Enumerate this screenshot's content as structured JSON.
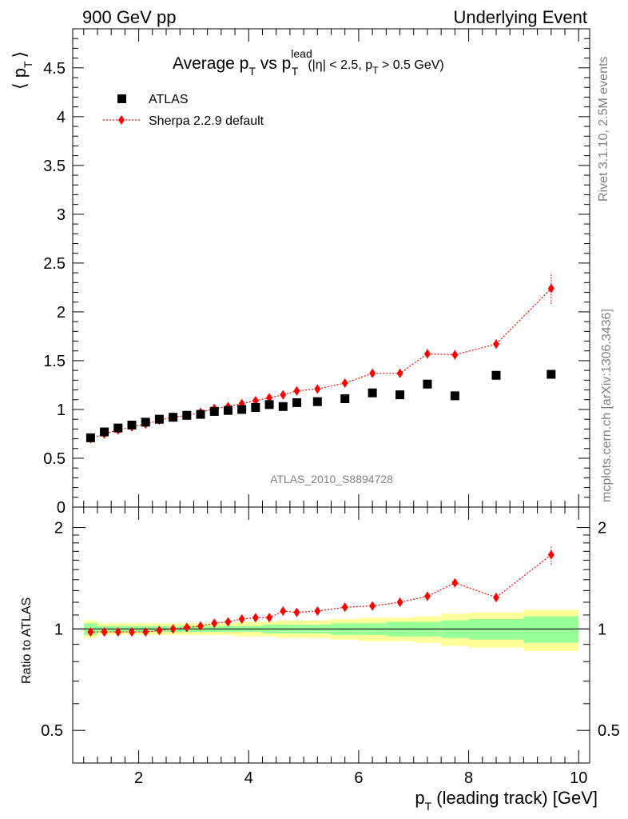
{
  "header": {
    "left": "900 GeV pp",
    "right": "Underlying Event"
  },
  "title": {
    "main": "Average p",
    "sub_T": "T",
    "vs": " vs p",
    "sup_lead": "lead",
    "sub_T2": "T",
    "cuts_a": "(|η| < 2.5, p",
    "cuts_sub": "T",
    "cuts_b": " > 0.5 GeV)"
  },
  "side_labels": {
    "rivet": "Rivet 3.1.10,  2.5M events",
    "mcplots": "mcplots.cern.ch [arXiv:1306.3436]"
  },
  "analysis_id": "ATLAS_2010_S8894728",
  "axis_labels": {
    "main_y_left": "⟨ p",
    "main_y_sub": "T",
    "main_y_right": "⟩",
    "ratio_y": "Ratio to ATLAS",
    "x_main": "p",
    "x_sub": "T",
    "x_rest": " (leading track) [GeV]"
  },
  "legend": {
    "data_label": "ATLAS",
    "mc_label": "Sherpa 2.2.9 default"
  },
  "colors": {
    "data": "#000000",
    "mc": "#ff0000",
    "band_inner": "#99ff99",
    "band_outer": "#ffff99"
  },
  "chart_data": [
    {
      "type": "scatter",
      "panel": "main",
      "xlim": [
        0.8,
        10.2
      ],
      "ylim": [
        0,
        4.9
      ],
      "y_ticks": [
        "0",
        "0.5",
        "1",
        "1.5",
        "2",
        "2.5",
        "3",
        "3.5",
        "4",
        "4.5"
      ],
      "x": [
        1.125,
        1.375,
        1.625,
        1.875,
        2.125,
        2.375,
        2.625,
        2.875,
        3.125,
        3.375,
        3.625,
        3.875,
        4.125,
        4.375,
        4.625,
        4.875,
        5.25,
        5.75,
        6.25,
        6.75,
        7.25,
        7.75,
        8.5,
        9.5
      ],
      "series": [
        {
          "name": "ATLAS",
          "values": [
            0.71,
            0.77,
            0.81,
            0.84,
            0.87,
            0.9,
            0.92,
            0.94,
            0.95,
            0.98,
            0.99,
            1.0,
            1.02,
            1.05,
            1.03,
            1.07,
            1.08,
            1.11,
            1.17,
            1.15,
            1.26,
            1.14,
            1.35,
            1.36
          ]
        },
        {
          "name": "Sherpa 2.2.9 default",
          "values": [
            0.7,
            0.75,
            0.79,
            0.82,
            0.85,
            0.89,
            0.92,
            0.94,
            0.97,
            1.01,
            1.03,
            1.06,
            1.09,
            1.12,
            1.15,
            1.19,
            1.21,
            1.27,
            1.37,
            1.37,
            1.57,
            1.56,
            1.67,
            2.24
          ],
          "errors": [
            0.01,
            0.01,
            0.01,
            0.01,
            0.01,
            0.01,
            0.01,
            0.01,
            0.01,
            0.01,
            0.01,
            0.01,
            0.01,
            0.01,
            0.01,
            0.01,
            0.015,
            0.02,
            0.02,
            0.025,
            0.05,
            0.05,
            0.05,
            0.16
          ]
        }
      ]
    },
    {
      "type": "scatter",
      "panel": "ratio",
      "xlim": [
        0.8,
        10.2
      ],
      "ylim": [
        0.4,
        2.3
      ],
      "x_ticks": [
        "2",
        "4",
        "6",
        "8",
        "10"
      ],
      "y_ticks": [
        "0.5",
        "1",
        "2"
      ],
      "band_edges": [
        1.0,
        1.25,
        1.5,
        1.75,
        2.0,
        2.25,
        2.5,
        2.75,
        3.0,
        3.25,
        3.5,
        3.75,
        4.0,
        4.25,
        4.5,
        4.75,
        5.0,
        5.5,
        6.0,
        6.5,
        7.0,
        7.5,
        8.0,
        9.0,
        10.0
      ],
      "band_inner_halfwidth": [
        0.04,
        0.02,
        0.02,
        0.02,
        0.02,
        0.02,
        0.02,
        0.02,
        0.02,
        0.02,
        0.02,
        0.02,
        0.02,
        0.03,
        0.03,
        0.03,
        0.03,
        0.04,
        0.04,
        0.05,
        0.05,
        0.06,
        0.07,
        0.09
      ],
      "band_outer_halfwidth": [
        0.06,
        0.04,
        0.04,
        0.04,
        0.04,
        0.04,
        0.04,
        0.04,
        0.04,
        0.04,
        0.04,
        0.05,
        0.05,
        0.05,
        0.06,
        0.06,
        0.06,
        0.07,
        0.08,
        0.08,
        0.09,
        0.11,
        0.12,
        0.14
      ],
      "series": [
        {
          "name": "Sherpa 2.2.9 default",
          "x": [
            1.125,
            1.375,
            1.625,
            1.875,
            2.125,
            2.375,
            2.625,
            2.875,
            3.125,
            3.375,
            3.625,
            3.875,
            4.125,
            4.375,
            4.625,
            4.875,
            5.25,
            5.75,
            6.25,
            6.75,
            7.25,
            7.75,
            8.5,
            9.5
          ],
          "values": [
            0.98,
            0.98,
            0.98,
            0.98,
            0.98,
            0.99,
            1.0,
            1.01,
            1.02,
            1.04,
            1.05,
            1.07,
            1.08,
            1.08,
            1.13,
            1.12,
            1.13,
            1.16,
            1.17,
            1.2,
            1.25,
            1.37,
            1.24,
            1.66
          ],
          "errors": [
            0.015,
            0.01,
            0.01,
            0.01,
            0.01,
            0.01,
            0.01,
            0.01,
            0.01,
            0.01,
            0.01,
            0.01,
            0.01,
            0.01,
            0.015,
            0.015,
            0.015,
            0.02,
            0.02,
            0.02,
            0.04,
            0.04,
            0.04,
            0.11
          ]
        }
      ]
    }
  ]
}
